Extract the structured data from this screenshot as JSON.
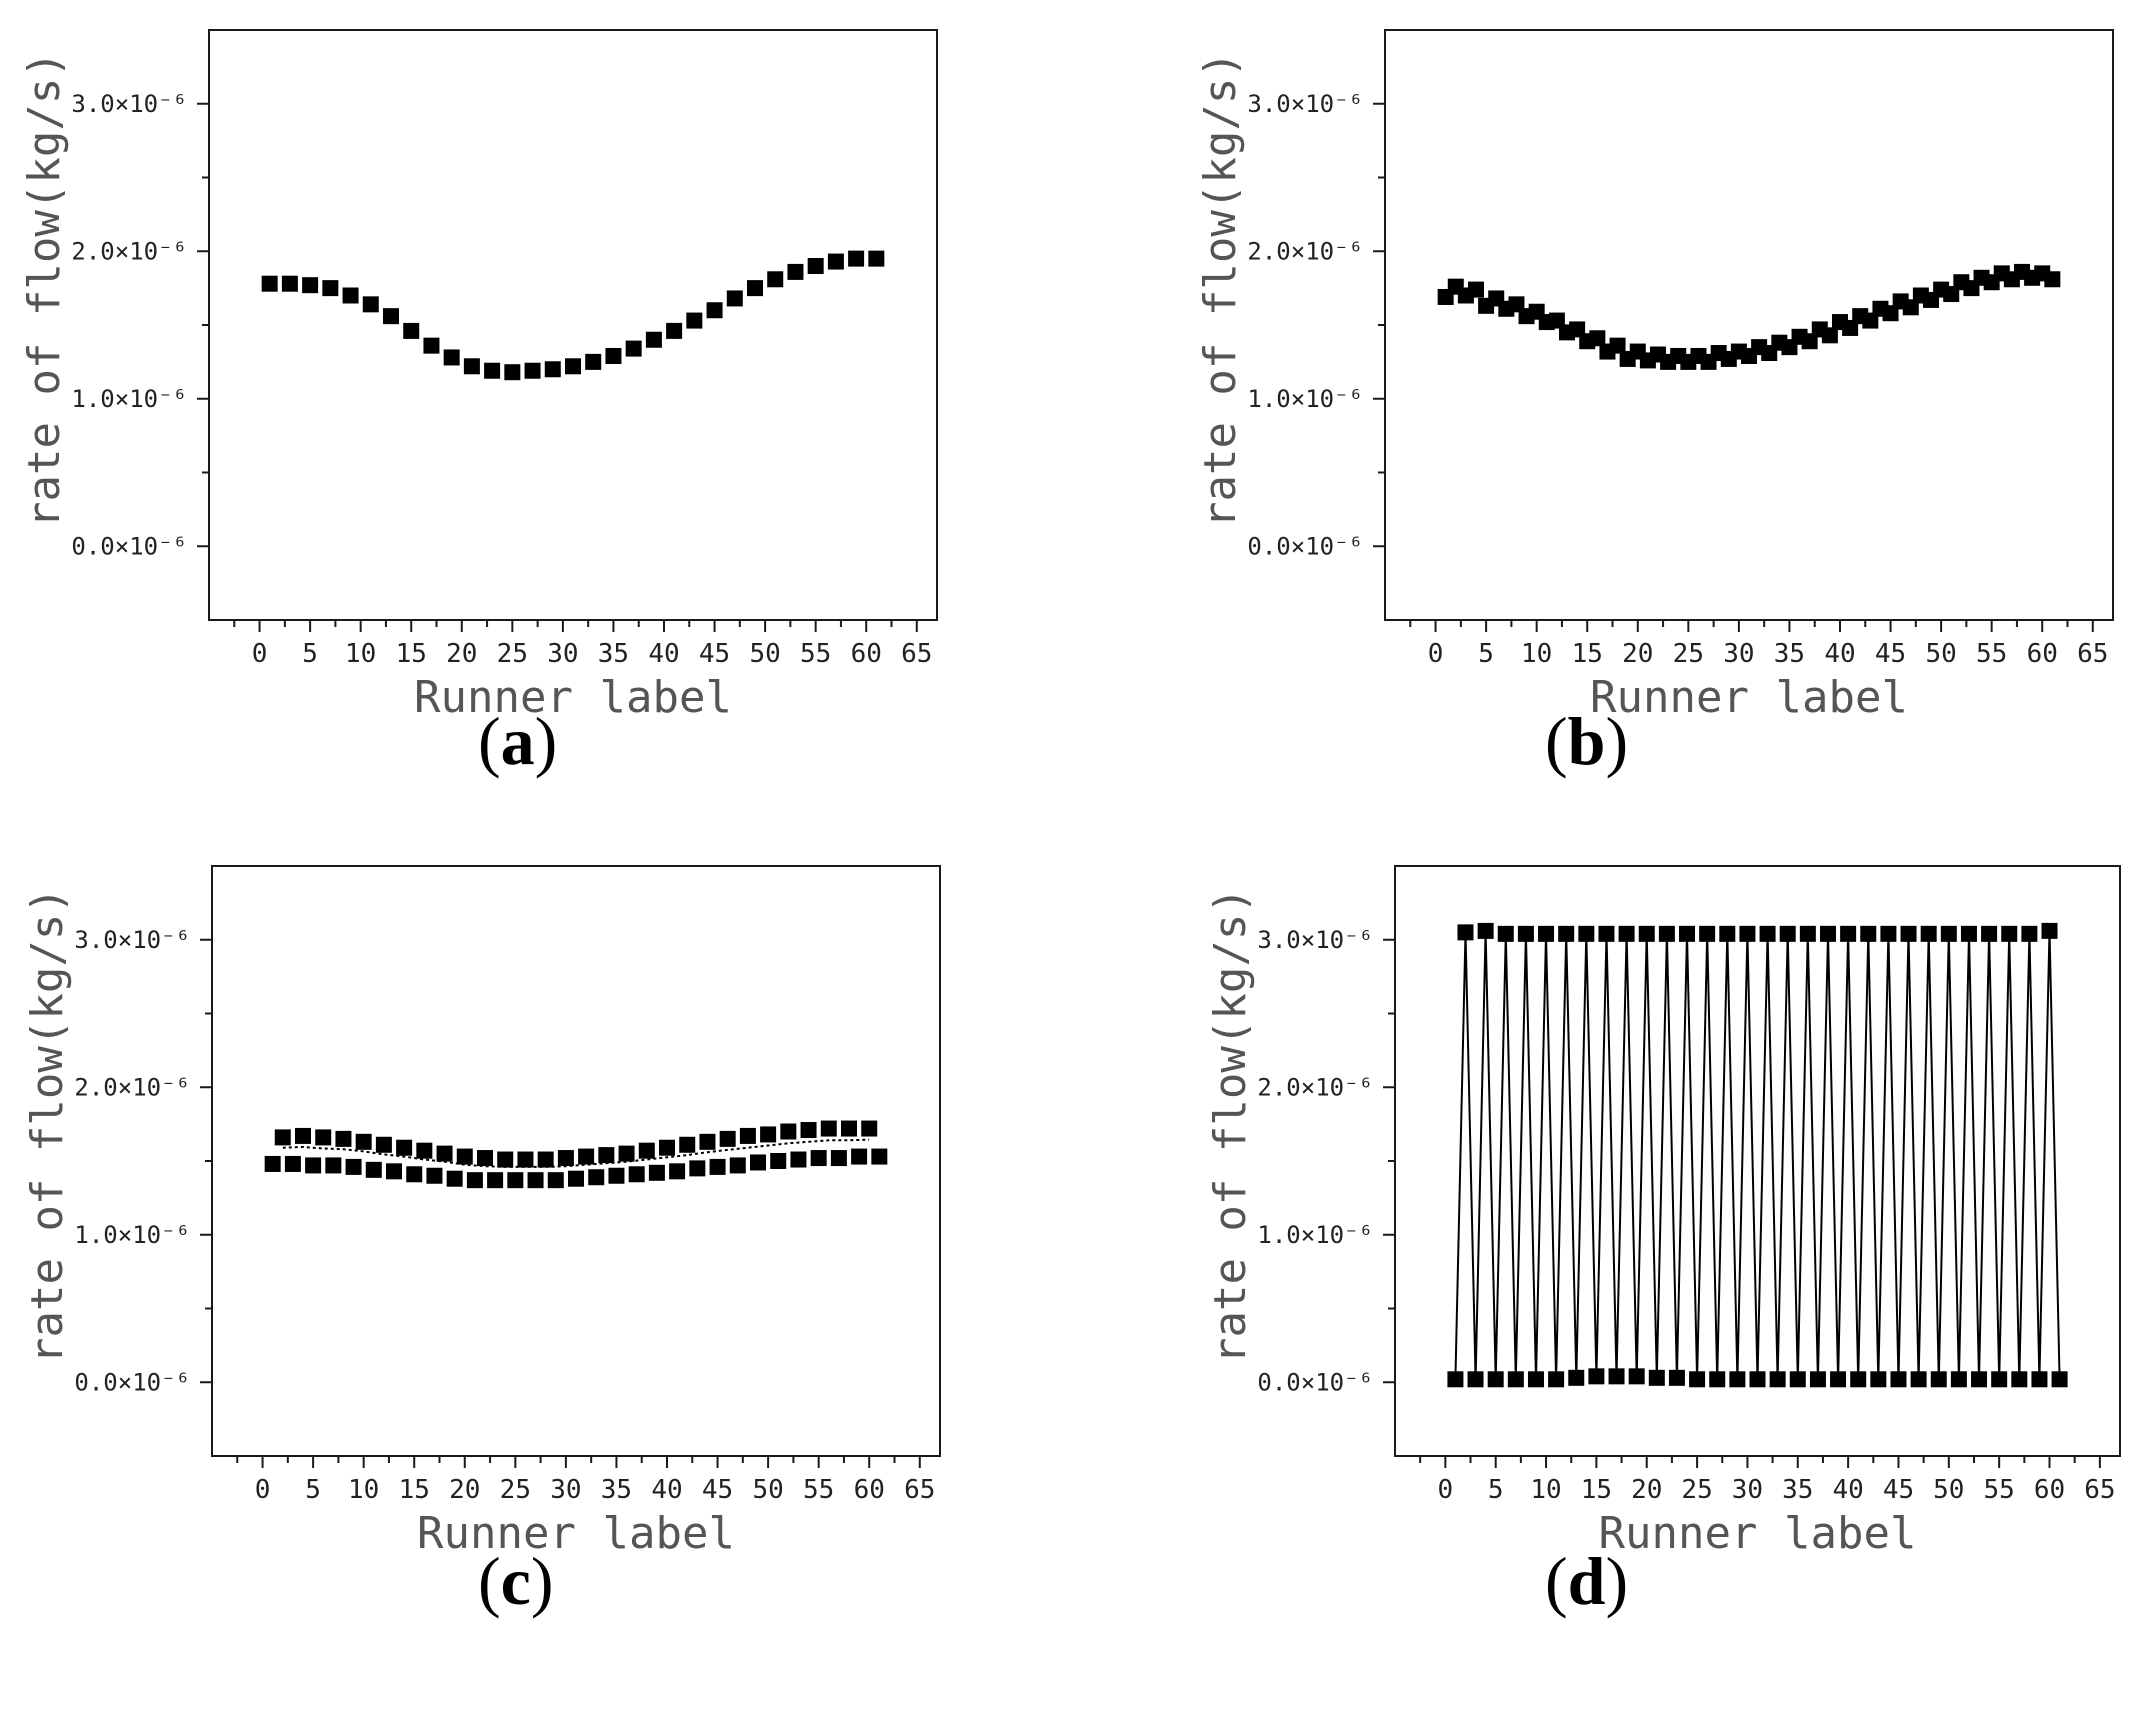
{
  "chart_data": [
    {
      "panel_label": "(a)",
      "type": "scatter",
      "xlabel": "Runner label",
      "ylabel": "rate of flow(kg/s)",
      "xticks": [
        "0",
        "5",
        "10",
        "15",
        "20",
        "25",
        "30",
        "35",
        "40",
        "45",
        "50",
        "55",
        "60",
        "65"
      ],
      "yticks": [
        "0.0×10⁻⁶",
        "1.0×10⁻⁶",
        "2.0×10⁻⁶",
        "3.0×10⁻⁶"
      ],
      "xlim": [
        -5,
        67
      ],
      "ylim": [
        -0.5,
        3.5
      ],
      "y_unit_scale": "×10⁻⁶",
      "series": [
        {
          "x": [
            1,
            3,
            5,
            7,
            9,
            11,
            13,
            15,
            17,
            19,
            21,
            23,
            25,
            27,
            29,
            31,
            33,
            35,
            37,
            39,
            41,
            43,
            45,
            47,
            49,
            51,
            53,
            55,
            57,
            59,
            61
          ],
          "values": [
            1.78,
            1.78,
            1.77,
            1.75,
            1.7,
            1.64,
            1.56,
            1.46,
            1.36,
            1.28,
            1.22,
            1.19,
            1.18,
            1.19,
            1.2,
            1.22,
            1.25,
            1.29,
            1.34,
            1.4,
            1.46,
            1.53,
            1.6,
            1.68,
            1.75,
            1.81,
            1.86,
            1.9,
            1.93,
            1.95,
            1.95
          ]
        }
      ]
    },
    {
      "panel_label": "(b)",
      "type": "scatter",
      "xlabel": "Runner label",
      "ylabel": "rate of flow(kg/s)",
      "xticks": [
        "0",
        "5",
        "10",
        "15",
        "20",
        "25",
        "30",
        "35",
        "40",
        "45",
        "50",
        "55",
        "60",
        "65"
      ],
      "yticks": [
        "0.0×10⁻⁶",
        "1.0×10⁻⁶",
        "2.0×10⁻⁶",
        "3.0×10⁻⁶"
      ],
      "xlim": [
        -5,
        67
      ],
      "ylim": [
        -0.5,
        3.5
      ],
      "y_unit_scale": "×10⁻⁶",
      "series": [
        {
          "x": [
            1,
            2,
            3,
            4,
            5,
            6,
            7,
            8,
            9,
            10,
            11,
            12,
            13,
            14,
            15,
            16,
            17,
            18,
            19,
            20,
            21,
            22,
            23,
            24,
            25,
            26,
            27,
            28,
            29,
            30,
            31,
            32,
            33,
            34,
            35,
            36,
            37,
            38,
            39,
            40,
            41,
            42,
            43,
            44,
            45,
            46,
            47,
            48,
            49,
            50,
            51,
            52,
            53,
            54,
            55,
            56,
            57,
            58,
            59,
            60,
            61
          ],
          "values": [
            1.69,
            1.76,
            1.7,
            1.74,
            1.63,
            1.68,
            1.61,
            1.64,
            1.56,
            1.59,
            1.52,
            1.53,
            1.45,
            1.47,
            1.39,
            1.41,
            1.32,
            1.36,
            1.27,
            1.32,
            1.26,
            1.3,
            1.25,
            1.29,
            1.25,
            1.29,
            1.25,
            1.31,
            1.27,
            1.32,
            1.29,
            1.35,
            1.31,
            1.38,
            1.35,
            1.42,
            1.39,
            1.47,
            1.43,
            1.52,
            1.48,
            1.56,
            1.53,
            1.61,
            1.58,
            1.66,
            1.62,
            1.7,
            1.67,
            1.74,
            1.71,
            1.79,
            1.75,
            1.82,
            1.79,
            1.85,
            1.81,
            1.86,
            1.82,
            1.85,
            1.81
          ]
        }
      ]
    },
    {
      "panel_label": "(c)",
      "type": "scatter",
      "xlabel": "Runner label",
      "ylabel": "rate of flow(kg/s)",
      "xticks": [
        "0",
        "5",
        "10",
        "15",
        "20",
        "25",
        "30",
        "35",
        "40",
        "45",
        "50",
        "55",
        "60",
        "65"
      ],
      "yticks": [
        "0.0×10⁻⁶",
        "1.0×10⁻⁶",
        "2.0×10⁻⁶",
        "3.0×10⁻⁶"
      ],
      "xlim": [
        -5,
        67
      ],
      "ylim": [
        -0.5,
        3.5
      ],
      "y_unit_scale": "×10⁻⁶",
      "series": [
        {
          "x": [
            2,
            4,
            6,
            8,
            10,
            12,
            14,
            16,
            18,
            20,
            22,
            24,
            26,
            28,
            30,
            32,
            34,
            36,
            38,
            40,
            42,
            44,
            46,
            48,
            50,
            52,
            54,
            56,
            58,
            60
          ],
          "values": [
            1.66,
            1.67,
            1.66,
            1.65,
            1.63,
            1.61,
            1.59,
            1.57,
            1.55,
            1.53,
            1.52,
            1.51,
            1.51,
            1.51,
            1.52,
            1.53,
            1.54,
            1.55,
            1.57,
            1.59,
            1.61,
            1.63,
            1.65,
            1.67,
            1.68,
            1.7,
            1.71,
            1.72,
            1.72,
            1.72
          ]
        },
        {
          "x": [
            1,
            3,
            5,
            7,
            9,
            11,
            13,
            15,
            17,
            19,
            21,
            23,
            25,
            27,
            29,
            31,
            33,
            35,
            37,
            39,
            41,
            43,
            45,
            47,
            49,
            51,
            53,
            55,
            57,
            59,
            61
          ],
          "values": [
            1.48,
            1.48,
            1.47,
            1.47,
            1.46,
            1.44,
            1.43,
            1.41,
            1.4,
            1.38,
            1.37,
            1.37,
            1.37,
            1.37,
            1.37,
            1.38,
            1.39,
            1.4,
            1.41,
            1.42,
            1.43,
            1.45,
            1.46,
            1.47,
            1.49,
            1.5,
            1.51,
            1.52,
            1.52,
            1.53,
            1.53
          ]
        }
      ]
    },
    {
      "panel_label": "(d)",
      "type": "line",
      "xlabel": "Runner label",
      "ylabel": "rate of flow(kg/s)",
      "xticks": [
        "0",
        "5",
        "10",
        "15",
        "20",
        "25",
        "30",
        "35",
        "40",
        "45",
        "50",
        "55",
        "60",
        "65"
      ],
      "yticks": [
        "0.0×10⁻⁶",
        "1.0×10⁻⁶",
        "2.0×10⁻⁶",
        "3.0×10⁻⁶"
      ],
      "xlim": [
        -5,
        67
      ],
      "ylim": [
        -0.5,
        3.5
      ],
      "y_unit_scale": "×10⁻⁶",
      "series": [
        {
          "x": [
            1,
            2,
            3,
            4,
            5,
            6,
            7,
            8,
            9,
            10,
            11,
            12,
            13,
            14,
            15,
            16,
            17,
            18,
            19,
            20,
            21,
            22,
            23,
            24,
            25,
            26,
            27,
            28,
            29,
            30,
            31,
            32,
            33,
            34,
            35,
            36,
            37,
            38,
            39,
            40,
            41,
            42,
            43,
            44,
            45,
            46,
            47,
            48,
            49,
            50,
            51,
            52,
            53,
            54,
            55,
            56,
            57,
            58,
            59,
            60,
            61
          ],
          "values": [
            0.02,
            3.05,
            0.02,
            3.06,
            0.02,
            3.04,
            0.02,
            3.04,
            0.02,
            3.04,
            0.02,
            3.04,
            0.03,
            3.04,
            0.04,
            3.04,
            0.04,
            3.04,
            0.04,
            3.04,
            0.03,
            3.04,
            0.03,
            3.04,
            0.02,
            3.04,
            0.02,
            3.04,
            0.02,
            3.04,
            0.02,
            3.04,
            0.02,
            3.04,
            0.02,
            3.04,
            0.02,
            3.04,
            0.02,
            3.04,
            0.02,
            3.04,
            0.02,
            3.04,
            0.02,
            3.04,
            0.02,
            3.04,
            0.02,
            3.04,
            0.02,
            3.04,
            0.02,
            3.04,
            0.02,
            3.04,
            0.02,
            3.04,
            0.02,
            3.06,
            0.02
          ]
        }
      ]
    }
  ]
}
